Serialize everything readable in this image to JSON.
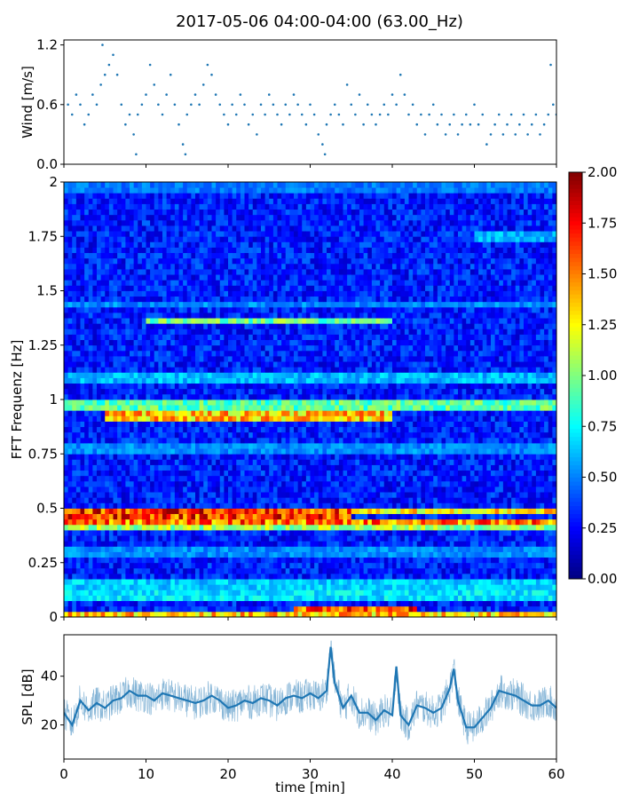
{
  "title": "2017-05-06 04:00-04:00 (63.00_Hz)",
  "colors": {
    "series": "#1f77b4",
    "axis": "#000000",
    "background": "#ffffff",
    "colormap": "jet"
  },
  "chart_data": [
    {
      "id": "wind",
      "type": "scatter",
      "title": "",
      "xlabel": "",
      "ylabel": "Wind [m/s]",
      "xlim": [
        0,
        60
      ],
      "ylim": [
        0,
        1.25
      ],
      "yticks": [
        0.0,
        0.6,
        1.2
      ],
      "ytick_labels": [
        "0.0",
        "0.6",
        "1.2"
      ],
      "xticks": [
        0,
        10,
        20,
        30,
        40,
        50,
        60
      ],
      "grid": false,
      "points": [
        [
          0.5,
          0.6
        ],
        [
          1,
          0.5
        ],
        [
          1.5,
          0.7
        ],
        [
          2,
          0.6
        ],
        [
          2.5,
          0.4
        ],
        [
          3,
          0.5
        ],
        [
          3.5,
          0.7
        ],
        [
          4,
          0.6
        ],
        [
          4.5,
          0.8
        ],
        [
          4.7,
          1.2
        ],
        [
          5,
          0.9
        ],
        [
          5.5,
          1.0
        ],
        [
          6,
          1.1
        ],
        [
          6.5,
          0.9
        ],
        [
          7,
          0.6
        ],
        [
          7.5,
          0.4
        ],
        [
          8,
          0.5
        ],
        [
          8.5,
          0.3
        ],
        [
          8.8,
          0.1
        ],
        [
          9,
          0.5
        ],
        [
          9.5,
          0.6
        ],
        [
          10,
          0.7
        ],
        [
          10.5,
          1.0
        ],
        [
          11,
          0.8
        ],
        [
          11.5,
          0.6
        ],
        [
          12,
          0.5
        ],
        [
          12.5,
          0.7
        ],
        [
          13,
          0.9
        ],
        [
          13.5,
          0.6
        ],
        [
          14,
          0.4
        ],
        [
          14.5,
          0.2
        ],
        [
          14.8,
          0.1
        ],
        [
          15,
          0.5
        ],
        [
          15.5,
          0.6
        ],
        [
          16,
          0.7
        ],
        [
          16.5,
          0.6
        ],
        [
          17,
          0.8
        ],
        [
          17.5,
          1.0
        ],
        [
          18,
          0.9
        ],
        [
          18.5,
          0.7
        ],
        [
          19,
          0.6
        ],
        [
          19.5,
          0.5
        ],
        [
          20,
          0.4
        ],
        [
          20.5,
          0.6
        ],
        [
          21,
          0.5
        ],
        [
          21.5,
          0.7
        ],
        [
          22,
          0.6
        ],
        [
          22.5,
          0.4
        ],
        [
          23,
          0.5
        ],
        [
          23.5,
          0.3
        ],
        [
          24,
          0.6
        ],
        [
          24.5,
          0.5
        ],
        [
          25,
          0.7
        ],
        [
          25.5,
          0.6
        ],
        [
          26,
          0.5
        ],
        [
          26.5,
          0.4
        ],
        [
          27,
          0.6
        ],
        [
          27.5,
          0.5
        ],
        [
          28,
          0.7
        ],
        [
          28.5,
          0.6
        ],
        [
          29,
          0.5
        ],
        [
          29.5,
          0.4
        ],
        [
          30,
          0.6
        ],
        [
          30.5,
          0.5
        ],
        [
          31,
          0.3
        ],
        [
          31.5,
          0.2
        ],
        [
          31.8,
          0.1
        ],
        [
          32,
          0.4
        ],
        [
          32.5,
          0.5
        ],
        [
          33,
          0.6
        ],
        [
          33.5,
          0.5
        ],
        [
          34,
          0.4
        ],
        [
          34.5,
          0.8
        ],
        [
          35,
          0.6
        ],
        [
          35.5,
          0.5
        ],
        [
          36,
          0.7
        ],
        [
          36.5,
          0.4
        ],
        [
          37,
          0.6
        ],
        [
          37.5,
          0.5
        ],
        [
          38,
          0.4
        ],
        [
          38.5,
          0.5
        ],
        [
          39,
          0.6
        ],
        [
          39.5,
          0.5
        ],
        [
          40,
          0.7
        ],
        [
          40.5,
          0.6
        ],
        [
          41,
          0.9
        ],
        [
          41.5,
          0.7
        ],
        [
          42,
          0.5
        ],
        [
          42.5,
          0.6
        ],
        [
          43,
          0.4
        ],
        [
          43.5,
          0.5
        ],
        [
          44,
          0.3
        ],
        [
          44.5,
          0.5
        ],
        [
          45,
          0.6
        ],
        [
          45.5,
          0.4
        ],
        [
          46,
          0.5
        ],
        [
          46.5,
          0.3
        ],
        [
          47,
          0.4
        ],
        [
          47.5,
          0.5
        ],
        [
          48,
          0.3
        ],
        [
          48.5,
          0.4
        ],
        [
          49,
          0.5
        ],
        [
          49.5,
          0.4
        ],
        [
          50,
          0.6
        ],
        [
          50.5,
          0.4
        ],
        [
          51,
          0.5
        ],
        [
          51.5,
          0.2
        ],
        [
          52,
          0.3
        ],
        [
          52.5,
          0.4
        ],
        [
          53,
          0.5
        ],
        [
          53.5,
          0.3
        ],
        [
          54,
          0.4
        ],
        [
          54.5,
          0.5
        ],
        [
          55,
          0.3
        ],
        [
          55.5,
          0.4
        ],
        [
          56,
          0.5
        ],
        [
          56.5,
          0.3
        ],
        [
          57,
          0.4
        ],
        [
          57.5,
          0.5
        ],
        [
          58,
          0.3
        ],
        [
          58.5,
          0.4
        ],
        [
          59,
          0.5
        ],
        [
          59.3,
          1.0
        ],
        [
          59.6,
          0.6
        ],
        [
          60,
          0.5
        ]
      ]
    },
    {
      "id": "spectrogram",
      "type": "heatmap",
      "title": "",
      "xlabel": "",
      "ylabel": "FFT Frequenz [Hz]",
      "xlim": [
        0,
        60
      ],
      "ylim": [
        0,
        2
      ],
      "yticks": [
        0,
        0.25,
        0.5,
        0.75,
        1,
        1.25,
        1.5,
        1.75,
        2
      ],
      "ytick_labels": [
        "0",
        "0.25",
        "0.5",
        "0.75",
        "1",
        "1.25",
        "1.5",
        "1.75",
        "2"
      ],
      "xticks": [
        0,
        10,
        20,
        30,
        40,
        50,
        60
      ],
      "grid": false,
      "colorbar": {
        "vmin": 0,
        "vmax": 2,
        "ticks": [
          0,
          0.25,
          0.5,
          0.75,
          1.0,
          1.25,
          1.5,
          1.75,
          2.0
        ],
        "tick_labels": [
          "0.00",
          "0.25",
          "0.50",
          "0.75",
          "1.00",
          "1.25",
          "1.50",
          "1.75",
          "2.00"
        ],
        "placement": "right"
      },
      "background_level": 0.3,
      "bands": [
        {
          "f": 0.01,
          "x0": 0,
          "x1": 60,
          "v": 1.55
        },
        {
          "f": 0.04,
          "x0": 28,
          "x1": 43,
          "v": 1.85
        },
        {
          "f": 0.1,
          "x0": 0,
          "x1": 60,
          "v": 0.8
        },
        {
          "f": 0.15,
          "x0": 0,
          "x1": 60,
          "v": 0.75
        },
        {
          "f": 0.3,
          "x0": 0,
          "x1": 60,
          "v": 0.6
        },
        {
          "f": 0.42,
          "x0": 0,
          "x1": 60,
          "v": 1.2
        },
        {
          "f": 0.44,
          "x0": 0,
          "x1": 60,
          "v": 1.75
        },
        {
          "f": 0.47,
          "x0": 0,
          "x1": 35,
          "v": 1.9
        },
        {
          "f": 0.49,
          "x0": 0,
          "x1": 60,
          "v": 1.45
        },
        {
          "f": 0.78,
          "x0": 0,
          "x1": 60,
          "v": 0.6
        },
        {
          "f": 0.93,
          "x0": 5,
          "x1": 40,
          "v": 1.55
        },
        {
          "f": 0.97,
          "x0": 0,
          "x1": 60,
          "v": 1.05
        },
        {
          "f": 1.1,
          "x0": 0,
          "x1": 60,
          "v": 0.7
        },
        {
          "f": 1.36,
          "x0": 10,
          "x1": 40,
          "v": 1.1
        },
        {
          "f": 1.44,
          "x0": 0,
          "x1": 60,
          "v": 0.6
        },
        {
          "f": 1.75,
          "x0": 50,
          "x1": 60,
          "v": 0.7
        },
        {
          "f": 1.97,
          "x0": 0,
          "x1": 60,
          "v": 0.55
        }
      ]
    },
    {
      "id": "spl",
      "type": "line",
      "title": "",
      "xlabel": "time [min]",
      "ylabel": "SPL [dB]",
      "xlim": [
        0,
        60
      ],
      "ylim": [
        6,
        57
      ],
      "yticks": [
        20,
        40
      ],
      "ytick_labels": [
        "20",
        "40"
      ],
      "xticks": [
        0,
        10,
        20,
        30,
        40,
        50,
        60
      ],
      "xtick_labels": [
        "0",
        "10",
        "20",
        "30",
        "40",
        "50",
        "60"
      ],
      "grid": false,
      "series": [
        {
          "name": "",
          "x": [
            0,
            1,
            2,
            3,
            4,
            5,
            6,
            7,
            8,
            9,
            10,
            11,
            12,
            13,
            14,
            15,
            16,
            17,
            18,
            19,
            20,
            21,
            22,
            23,
            24,
            25,
            26,
            27,
            28,
            29,
            30,
            31,
            32,
            32.5,
            33,
            34,
            35,
            36,
            37,
            38,
            39,
            40,
            40.5,
            41,
            42,
            43,
            44,
            45,
            46,
            47,
            47.5,
            48,
            49,
            50,
            51,
            52,
            53,
            54,
            55,
            56,
            57,
            58,
            59,
            60
          ],
          "y": [
            25,
            20,
            30,
            26,
            29,
            27,
            30,
            31,
            34,
            32,
            32,
            30,
            33,
            32,
            31,
            30,
            29,
            30,
            32,
            30,
            27,
            28,
            30,
            29,
            31,
            30,
            28,
            31,
            32,
            31,
            33,
            31,
            34,
            52,
            37,
            27,
            32,
            25,
            25,
            22,
            26,
            24,
            44,
            24,
            20,
            28,
            27,
            25,
            27,
            35,
            43,
            30,
            19,
            19,
            23,
            27,
            34,
            33,
            32,
            30,
            28,
            28,
            30,
            27
          ]
        }
      ]
    }
  ]
}
